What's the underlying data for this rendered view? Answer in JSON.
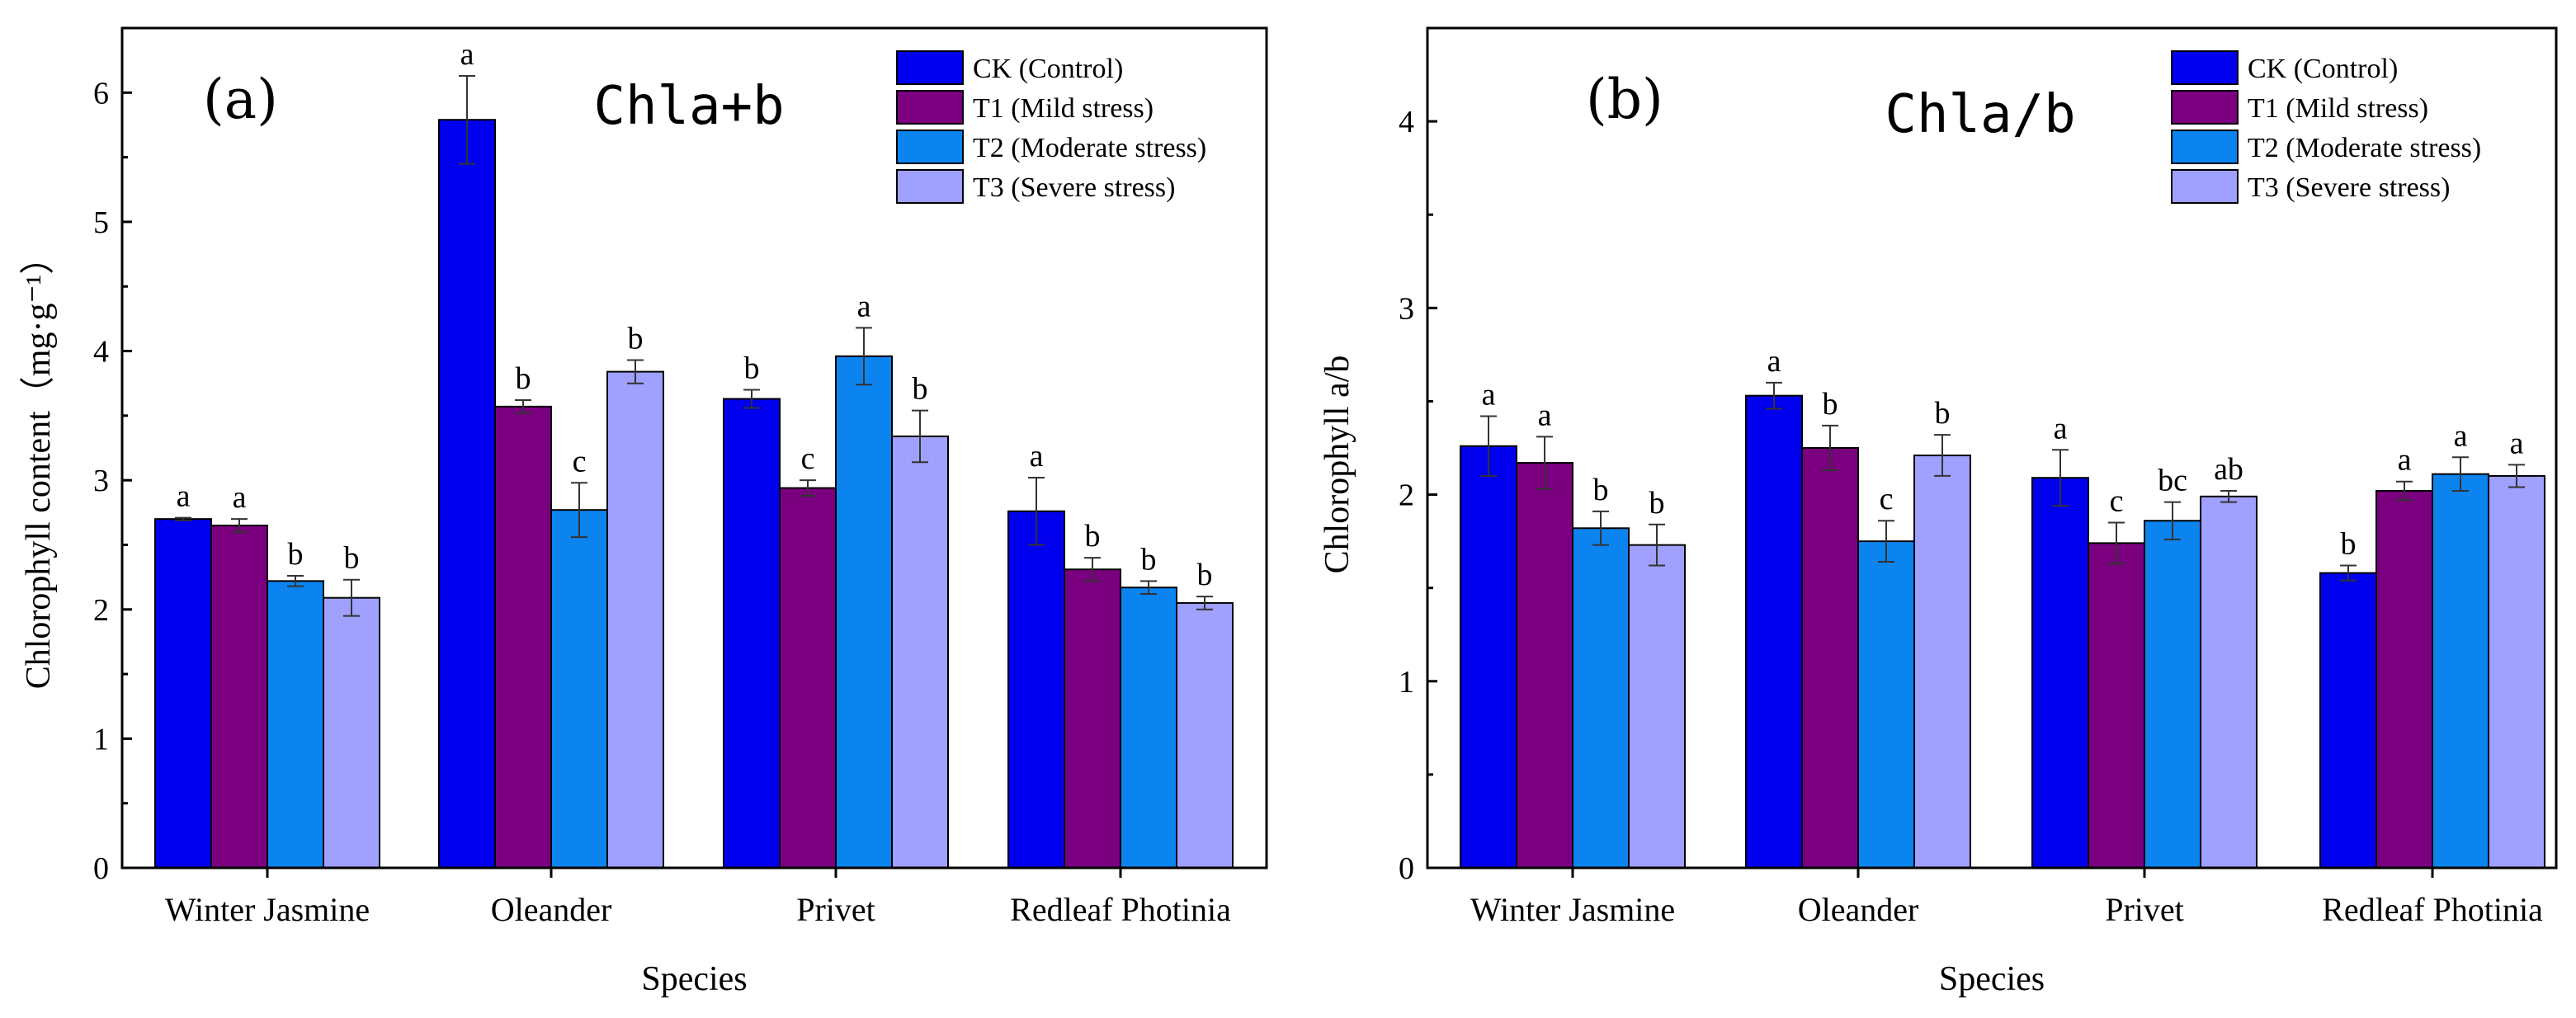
{
  "legend": [
    "CK (Control)",
    "T1 (Mild stress)",
    "T2 (Moderate stress)",
    "T3 (Severe stress)"
  ],
  "chart_data": [
    {
      "type": "bar",
      "panel_label": "(a)",
      "title": "Chla+b",
      "xlabel": "Species",
      "ylabel": "Chlorophyll content（mg·g⁻¹）",
      "ylim": [
        0,
        6.5
      ],
      "yticks": [
        0,
        1,
        2,
        3,
        4,
        5,
        6
      ],
      "categories": [
        "Winter Jasmine",
        "Oleander",
        "Privet",
        "Redleaf Photinia"
      ],
      "series": [
        {
          "name": "CK (Control)",
          "color": "#0000ee",
          "values": [
            2.7,
            5.79,
            3.63,
            2.76
          ],
          "errors": [
            0.01,
            0.34,
            0.07,
            0.26
          ],
          "labels": [
            "a",
            "a",
            "b",
            "a"
          ]
        },
        {
          "name": "T1 (Mild stress)",
          "color": "#7b0080",
          "values": [
            2.65,
            3.57,
            2.94,
            2.31
          ],
          "errors": [
            0.05,
            0.05,
            0.06,
            0.09
          ],
          "labels": [
            "a",
            "b",
            "c",
            "b"
          ]
        },
        {
          "name": "T2 (Moderate stress)",
          "color": "#0b84f0",
          "values": [
            2.22,
            2.77,
            3.96,
            2.17
          ],
          "errors": [
            0.04,
            0.21,
            0.22,
            0.05
          ],
          "labels": [
            "b",
            "c",
            "a",
            "b"
          ]
        },
        {
          "name": "T3 (Severe stress)",
          "color": "#a0a0ff",
          "values": [
            2.09,
            3.84,
            3.34,
            2.05
          ],
          "errors": [
            0.14,
            0.09,
            0.2,
            0.05
          ],
          "labels": [
            "b",
            "b",
            "b",
            "b"
          ]
        }
      ],
      "legend_position": "top-right",
      "grid": false
    },
    {
      "type": "bar",
      "panel_label": "(b)",
      "title": "Chla/b",
      "xlabel": "Species",
      "ylabel": "Chlorophyll a/b",
      "ylim": [
        0,
        4.5
      ],
      "yticks": [
        0,
        1,
        2,
        3,
        4
      ],
      "categories": [
        "Winter Jasmine",
        "Oleander",
        "Privet",
        "Redleaf Photinia"
      ],
      "series": [
        {
          "name": "CK (Control)",
          "color": "#0000ee",
          "values": [
            2.26,
            2.53,
            2.09,
            1.58
          ],
          "errors": [
            0.16,
            0.07,
            0.15,
            0.04
          ],
          "labels": [
            "a",
            "a",
            "a",
            "b"
          ]
        },
        {
          "name": "T1 (Mild stress)",
          "color": "#7b0080",
          "values": [
            2.17,
            2.25,
            1.74,
            2.02
          ],
          "errors": [
            0.14,
            0.12,
            0.11,
            0.05
          ],
          "labels": [
            "a",
            "b",
            "c",
            "a"
          ]
        },
        {
          "name": "T2 (Moderate stress)",
          "color": "#0b84f0",
          "values": [
            1.82,
            1.75,
            1.86,
            2.11
          ],
          "errors": [
            0.09,
            0.11,
            0.1,
            0.09
          ],
          "labels": [
            "b",
            "c",
            "bc",
            "a"
          ]
        },
        {
          "name": "T3 (Severe stress)",
          "color": "#a0a0ff",
          "values": [
            1.73,
            2.21,
            1.99,
            2.1
          ],
          "errors": [
            0.11,
            0.11,
            0.03,
            0.06
          ],
          "labels": [
            "b",
            "b",
            "ab",
            "a"
          ]
        }
      ],
      "legend_position": "top-right",
      "grid": false
    }
  ]
}
